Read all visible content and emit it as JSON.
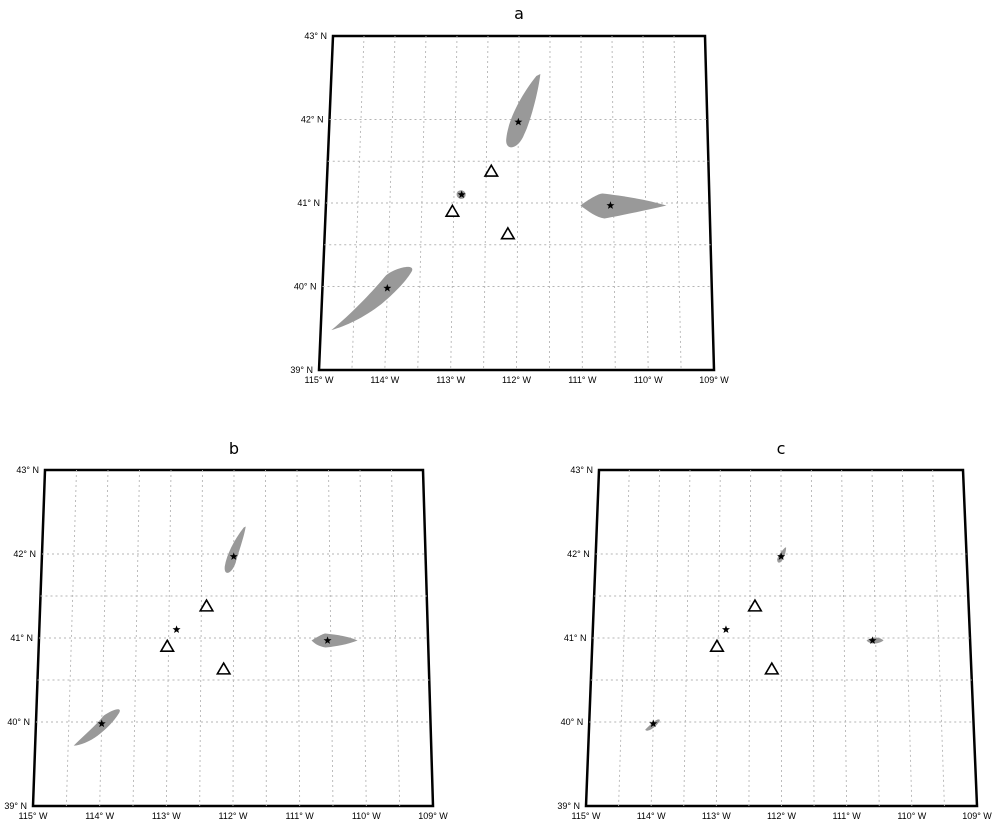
{
  "panels": [
    {
      "title": "a",
      "lat_labels": [
        "43° N",
        "42° N",
        "41° N",
        "40° N",
        "39° N"
      ],
      "lon_labels": [
        "115° W",
        "114° W",
        "113° W",
        "112° W",
        "111° W",
        "110° W",
        "109° W"
      ],
      "features": [
        {
          "kind": "ellipse",
          "name": "ellipse-north",
          "center": [
            -112.0,
            41.97
          ],
          "size": "large"
        },
        {
          "kind": "ellipse",
          "name": "ellipse-east",
          "center": [
            -110.55,
            40.97
          ],
          "size": "large"
        },
        {
          "kind": "ellipse",
          "name": "ellipse-southwest",
          "center": [
            -114.0,
            39.98
          ],
          "size": "large"
        },
        {
          "kind": "ellipse",
          "name": "ellipse-center",
          "center": [
            -112.88,
            41.1
          ],
          "size": "tiny"
        },
        {
          "kind": "star",
          "name": "star-north",
          "lonlat": [
            -112.0,
            41.97
          ]
        },
        {
          "kind": "star",
          "name": "star-east",
          "lonlat": [
            -110.55,
            40.97
          ]
        },
        {
          "kind": "star",
          "name": "star-southwest",
          "lonlat": [
            -114.0,
            39.98
          ]
        },
        {
          "kind": "star",
          "name": "star-center",
          "lonlat": [
            -112.88,
            41.1
          ]
        },
        {
          "kind": "triangle",
          "name": "station-1",
          "lonlat": [
            -112.42,
            41.38
          ]
        },
        {
          "kind": "triangle",
          "name": "station-2",
          "lonlat": [
            -113.02,
            40.9
          ]
        },
        {
          "kind": "triangle",
          "name": "station-3",
          "lonlat": [
            -112.15,
            40.63
          ]
        }
      ]
    },
    {
      "title": "b",
      "lat_labels": [
        "43° N",
        "42° N",
        "41° N",
        "40° N",
        "39° N"
      ],
      "lon_labels": [
        "115° W",
        "114° W",
        "113° W",
        "112° W",
        "111° W",
        "110° W",
        "109° W"
      ],
      "features": [
        {
          "kind": "ellipse",
          "name": "ellipse-north",
          "center": [
            -112.0,
            41.97
          ],
          "size": "medium"
        },
        {
          "kind": "ellipse",
          "name": "ellipse-east",
          "center": [
            -110.55,
            40.97
          ],
          "size": "medium"
        },
        {
          "kind": "ellipse",
          "name": "ellipse-southwest",
          "center": [
            -114.0,
            39.98
          ],
          "size": "medium"
        },
        {
          "kind": "star",
          "name": "star-north",
          "lonlat": [
            -112.0,
            41.97
          ]
        },
        {
          "kind": "star",
          "name": "star-east",
          "lonlat": [
            -110.55,
            40.97
          ]
        },
        {
          "kind": "star",
          "name": "star-southwest",
          "lonlat": [
            -114.0,
            39.98
          ]
        },
        {
          "kind": "star",
          "name": "star-center",
          "lonlat": [
            -112.88,
            41.1
          ]
        },
        {
          "kind": "triangle",
          "name": "station-1",
          "lonlat": [
            -112.42,
            41.38
          ]
        },
        {
          "kind": "triangle",
          "name": "station-2",
          "lonlat": [
            -113.02,
            40.9
          ]
        },
        {
          "kind": "triangle",
          "name": "station-3",
          "lonlat": [
            -112.15,
            40.63
          ]
        }
      ]
    },
    {
      "title": "c",
      "lat_labels": [
        "43° N",
        "42° N",
        "41° N",
        "40° N",
        "39° N"
      ],
      "lon_labels": [
        "115° W",
        "114° W",
        "113° W",
        "112° W",
        "111° W",
        "110° W",
        "109° W"
      ],
      "features": [
        {
          "kind": "ellipse",
          "name": "ellipse-north",
          "center": [
            -112.0,
            41.97
          ],
          "size": "small"
        },
        {
          "kind": "ellipse",
          "name": "ellipse-east",
          "center": [
            -110.55,
            40.97
          ],
          "size": "small"
        },
        {
          "kind": "ellipse",
          "name": "ellipse-southwest",
          "center": [
            -114.0,
            39.98
          ],
          "size": "small"
        },
        {
          "kind": "star",
          "name": "star-north",
          "lonlat": [
            -112.0,
            41.97
          ]
        },
        {
          "kind": "star",
          "name": "star-east",
          "lonlat": [
            -110.55,
            40.97
          ]
        },
        {
          "kind": "star",
          "name": "star-southwest",
          "lonlat": [
            -114.0,
            39.98
          ]
        },
        {
          "kind": "star",
          "name": "star-center",
          "lonlat": [
            -112.88,
            41.1
          ]
        },
        {
          "kind": "triangle",
          "name": "station-1",
          "lonlat": [
            -112.42,
            41.38
          ]
        },
        {
          "kind": "triangle",
          "name": "station-2",
          "lonlat": [
            -113.02,
            40.9
          ]
        },
        {
          "kind": "triangle",
          "name": "station-3",
          "lonlat": [
            -112.15,
            40.63
          ]
        }
      ]
    }
  ],
  "colors": {
    "frame": "#000000",
    "ellipse_fill": "#999999",
    "grid": "#b5b5b5",
    "star": "#000000"
  }
}
